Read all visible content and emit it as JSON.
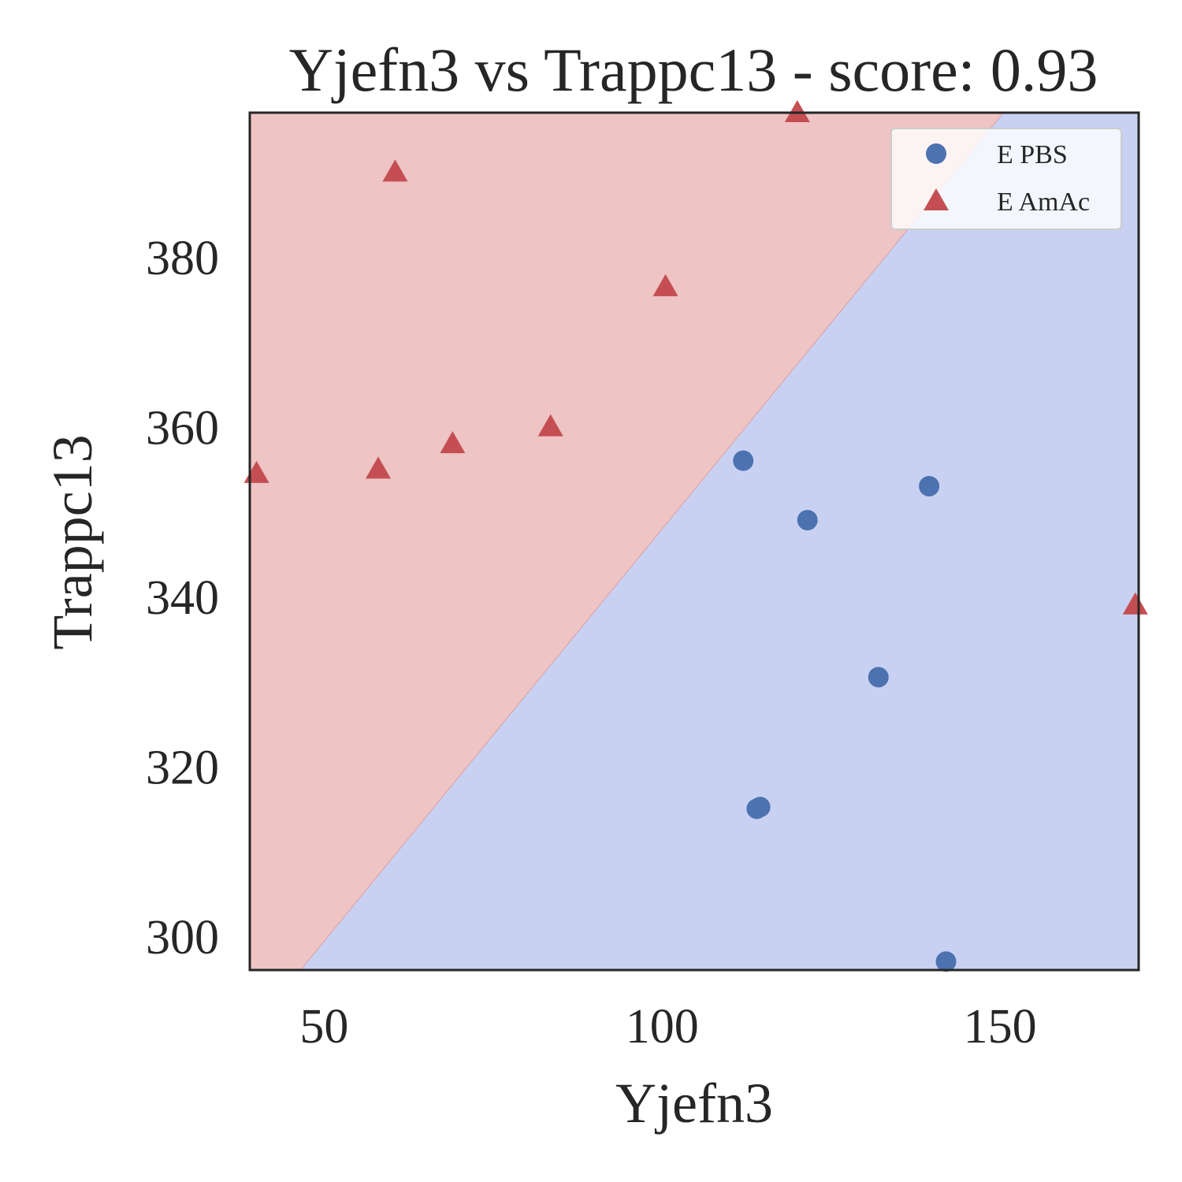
{
  "chart_data": {
    "type": "scatter",
    "title": "Yjefn3 vs Trappc13 - score: 0.93",
    "xlabel": "Yjefn3",
    "ylabel": "Trappc13",
    "xlim": [
      39,
      170.5
    ],
    "ylim": [
      296,
      397
    ],
    "xticks": [
      50,
      100,
      150
    ],
    "yticks": [
      300,
      320,
      340,
      360,
      380
    ],
    "grid": false,
    "legend_position": "top-right",
    "decision_boundary": {
      "points": [
        [
          46.5,
          296
        ],
        [
          150.5,
          397
        ]
      ],
      "upper_left_class": "E AmAc",
      "lower_right_class": "E PBS"
    },
    "series": [
      {
        "name": "E PBS",
        "marker": "circle",
        "color": "#4c72b0",
        "region_color": "#c9d1f2",
        "points": [
          [
            112.0,
            356.0
          ],
          [
            121.5,
            349.0
          ],
          [
            139.5,
            353.0
          ],
          [
            132.0,
            330.5
          ],
          [
            114.0,
            315.0
          ],
          [
            114.5,
            315.2
          ],
          [
            142.0,
            297.0
          ]
        ]
      },
      {
        "name": "E AmAc",
        "marker": "triangle",
        "color": "#c44e52",
        "region_color": "#eec4c4",
        "points": [
          [
            40.0,
            354.5
          ],
          [
            58.0,
            355.0
          ],
          [
            60.5,
            390.0
          ],
          [
            69.0,
            358.0
          ],
          [
            83.5,
            360.0
          ],
          [
            100.5,
            376.5
          ],
          [
            120.0,
            397.0
          ],
          [
            170.0,
            339.0
          ]
        ]
      }
    ]
  }
}
